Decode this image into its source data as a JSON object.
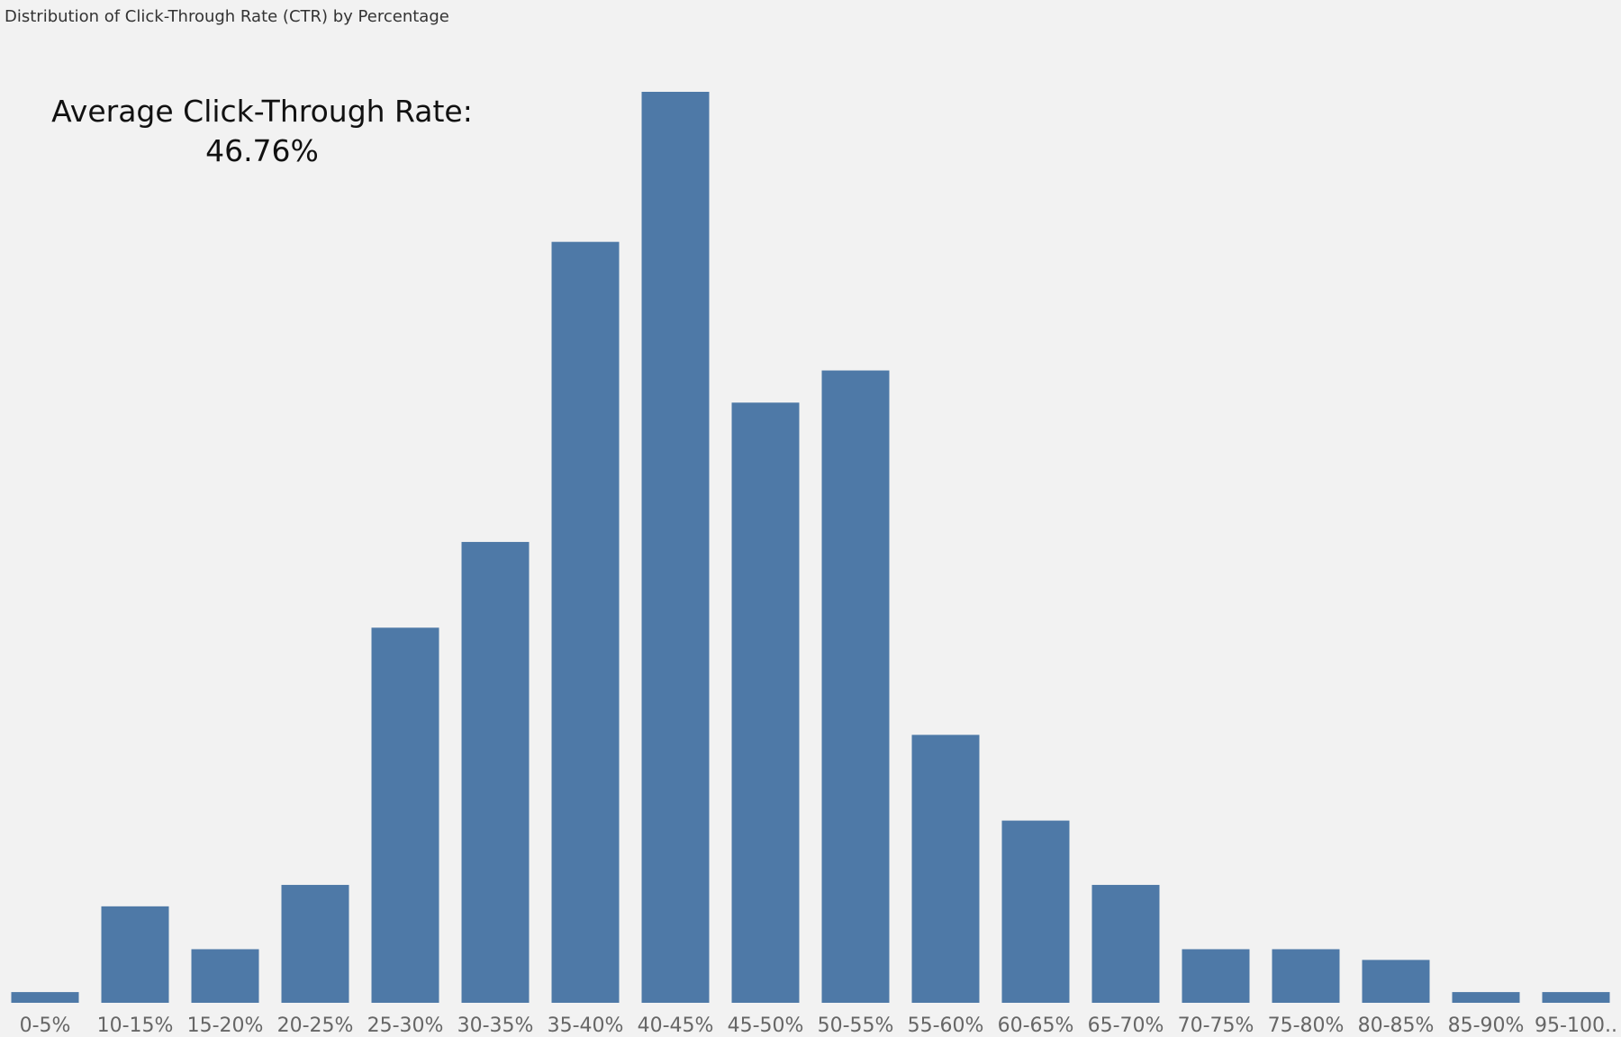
{
  "chart_data": {
    "type": "bar",
    "title": "Distribution of Click-Through Rate (CTR) by Percentage",
    "annotation": {
      "label": "Average Click-Through Rate:",
      "value": "46.76%"
    },
    "categories": [
      "0-5%",
      "10-15%",
      "15-20%",
      "20-25%",
      "25-30%",
      "30-35%",
      "35-40%",
      "40-45%",
      "45-50%",
      "50-55%",
      "55-60%",
      "60-65%",
      "65-70%",
      "70-75%",
      "75-80%",
      "80-85%",
      "85-90%",
      "95-100.."
    ],
    "values": [
      1,
      9,
      5,
      11,
      35,
      43,
      71,
      85,
      56,
      59,
      25,
      17,
      11,
      5,
      5,
      4,
      1,
      1
    ],
    "ylim": [
      0,
      85
    ],
    "xlabel": "",
    "ylabel": "",
    "grid": false,
    "bar_color": "#4e79a7"
  }
}
